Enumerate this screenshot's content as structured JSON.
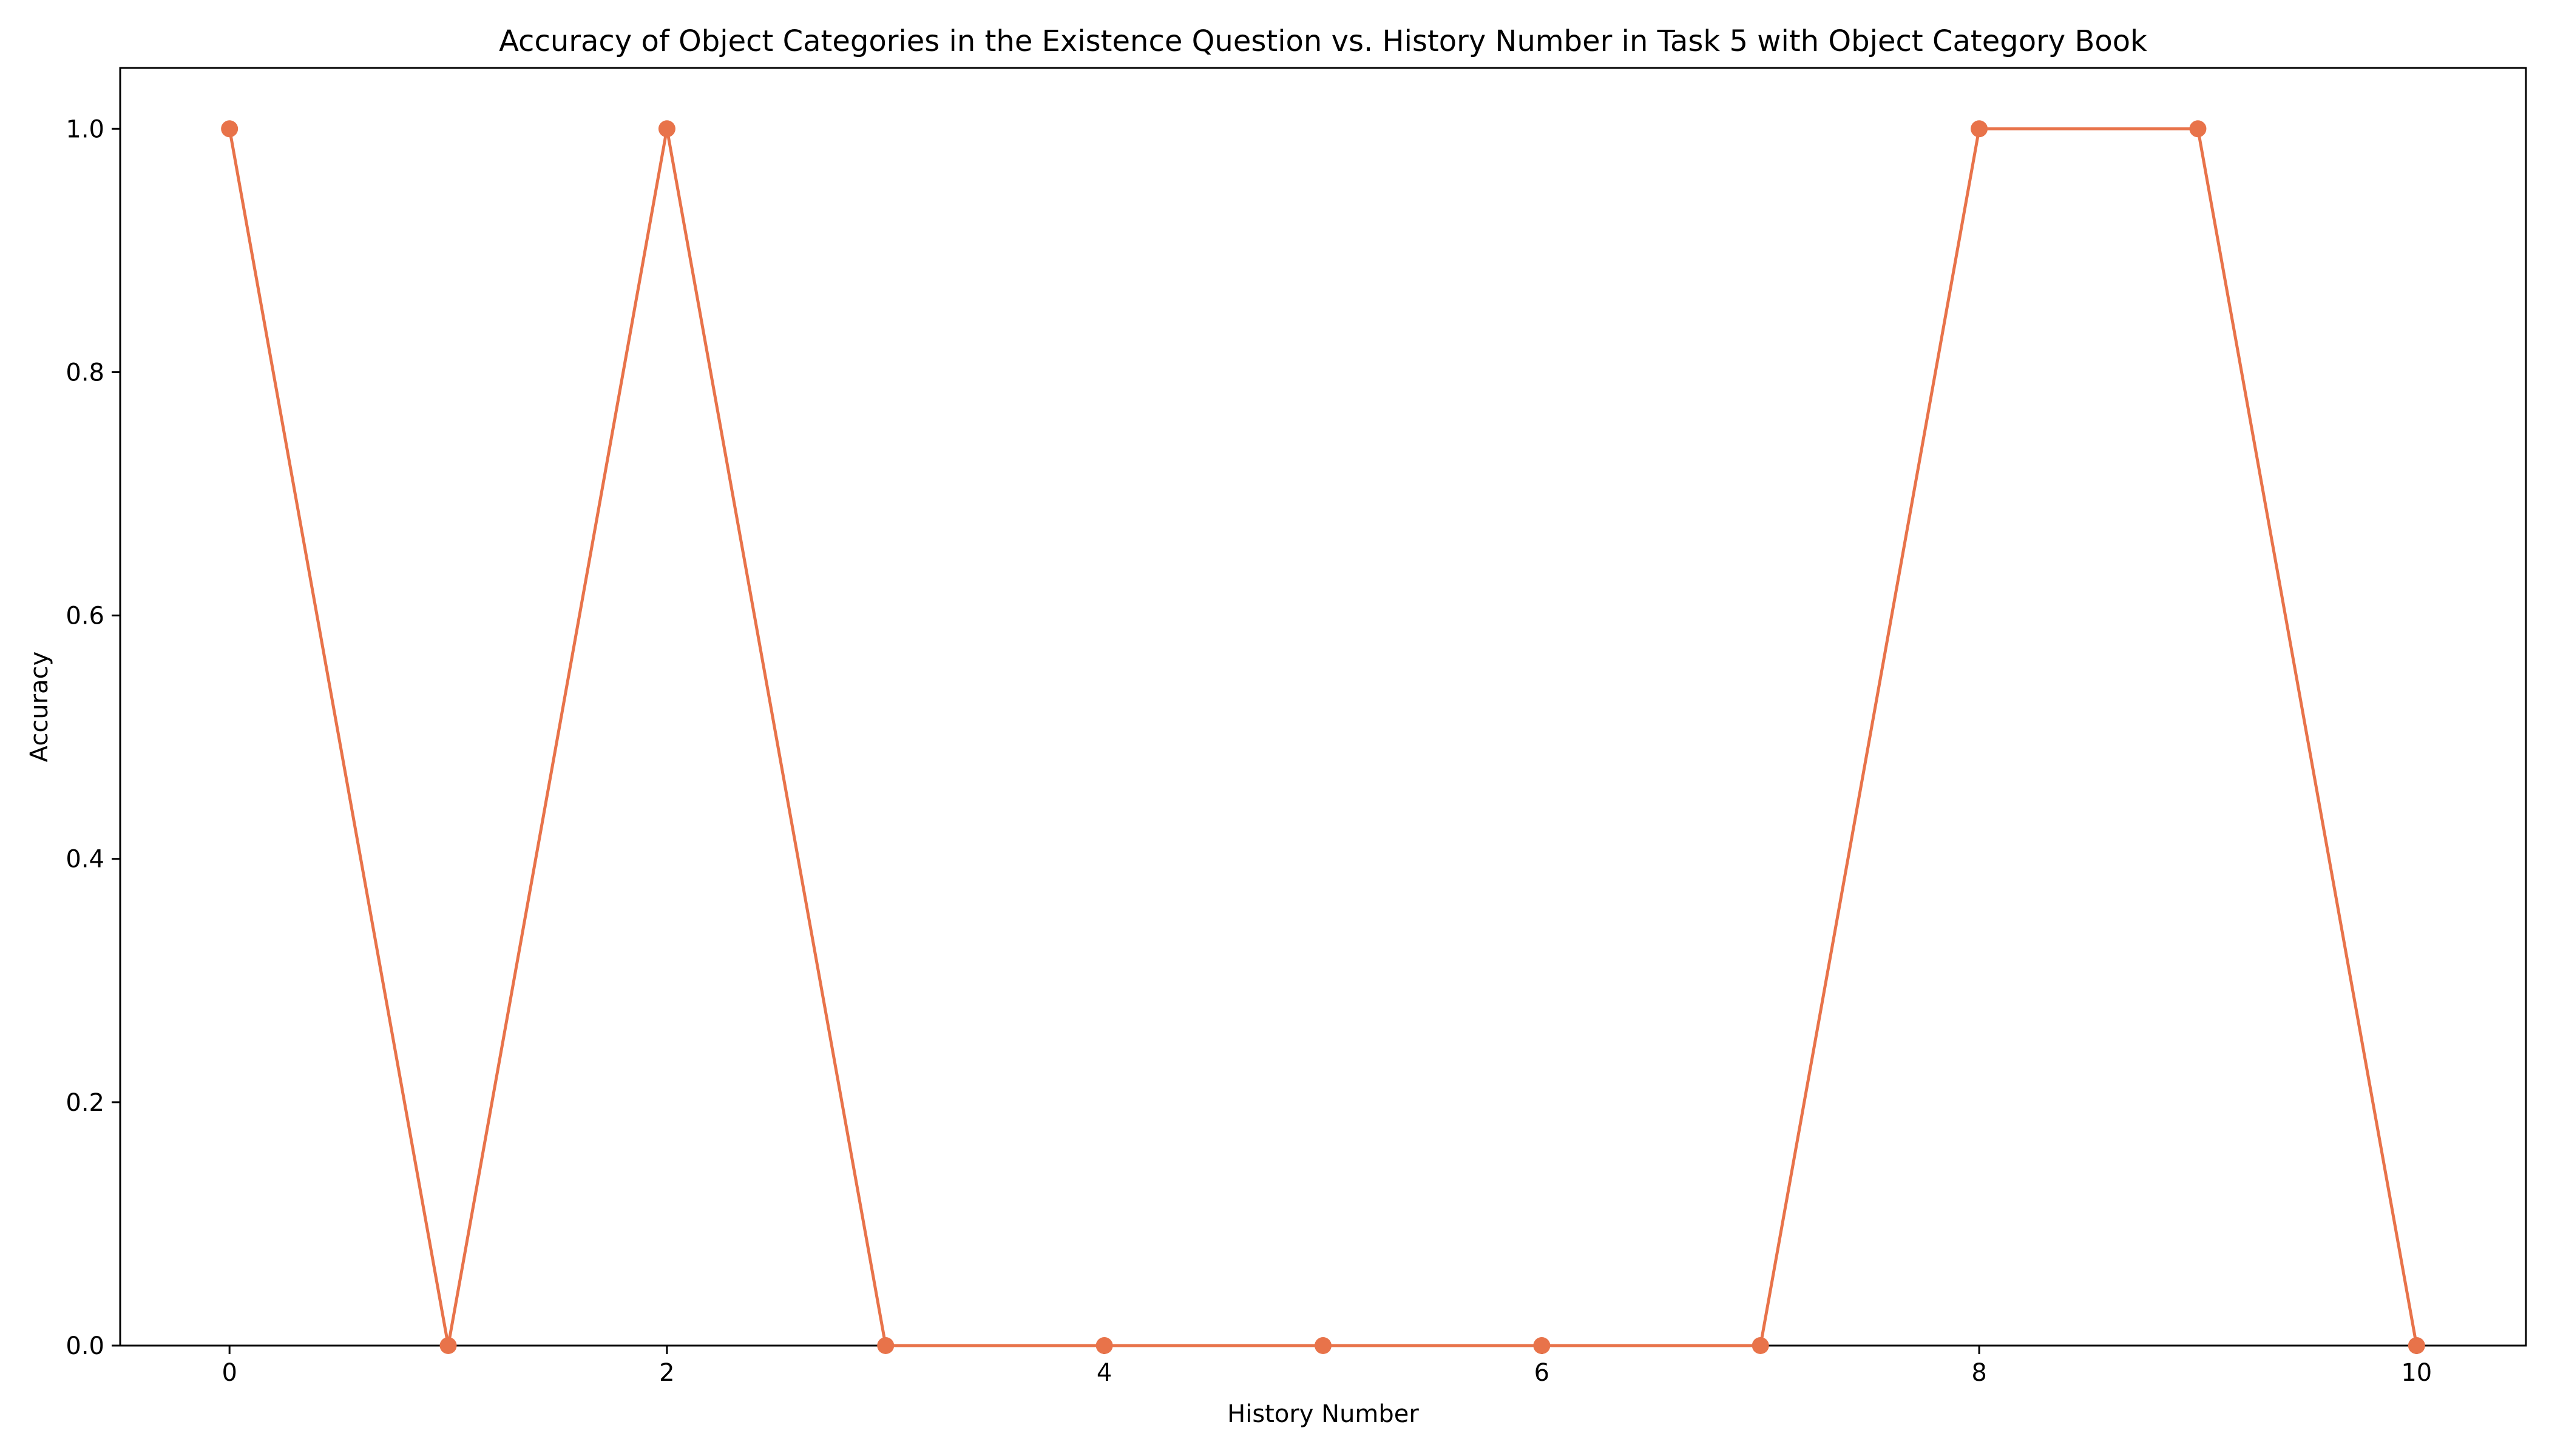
{
  "chart_data": {
    "type": "line",
    "title": "Accuracy of Object Categories in the Existence Question vs. History Number in Task 5 with Object Category Book",
    "xlabel": "History Number",
    "ylabel": "Accuracy",
    "xlim": [
      -0.5,
      10.5
    ],
    "ylim": [
      0,
      1.05
    ],
    "xticks": [
      0,
      2,
      4,
      6,
      8,
      10
    ],
    "xtick_labels": [
      "0",
      "2",
      "4",
      "6",
      "8",
      "10"
    ],
    "yticks": [
      0,
      0.2,
      0.4,
      0.6,
      0.8,
      1.0
    ],
    "ytick_labels": [
      "0.0",
      "0.2",
      "0.4",
      "0.6",
      "0.8",
      "1.0"
    ],
    "grid": false,
    "x": [
      0,
      1,
      2,
      3,
      4,
      5,
      6,
      7,
      8,
      9,
      10
    ],
    "series": [
      {
        "values": [
          1,
          0,
          1,
          0,
          0,
          0,
          0,
          0,
          1,
          1,
          0
        ],
        "color": "#e8734a",
        "marker": "circle"
      }
    ]
  }
}
